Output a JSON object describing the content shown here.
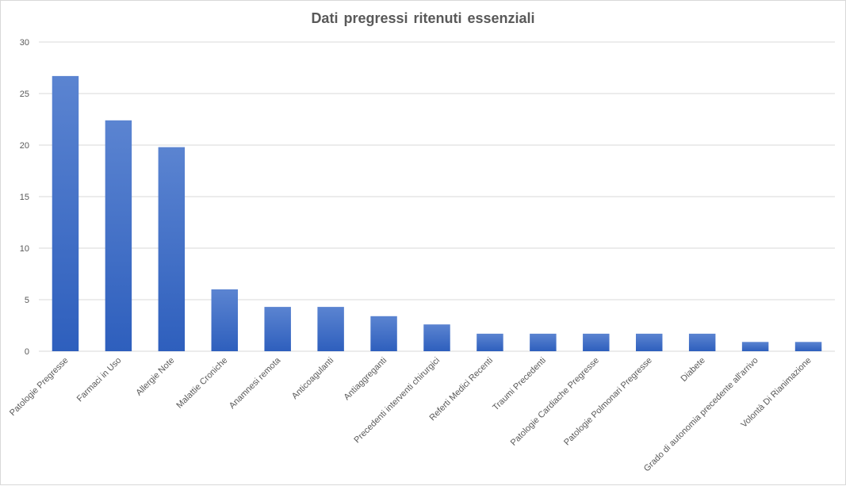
{
  "chart_data": {
    "type": "bar",
    "title": "Dati pregressi ritenuti essenziali",
    "xlabel": "",
    "ylabel": "",
    "ylim": [
      0,
      30
    ],
    "yticks": [
      0,
      5,
      10,
      15,
      20,
      25,
      30
    ],
    "grid": true,
    "legend": "none",
    "categories": [
      "Patologie Pregresse",
      "Farmaci in Uso",
      "Allergie Note",
      "Malattie Croniche",
      "Anamnesi remota",
      "Anticoagulanti",
      "Antiaggreganti",
      "Precedenti interventi chirurgici",
      "Referti Medici Recenti",
      "Traumi Precedenti",
      "Patologie Cardiache Pregresse",
      "Patologie Polmonari Pregresse",
      "Diabete",
      "Grado di  autonomia precedente all'arrivo",
      "Volontà Di Rianimazione"
    ],
    "values": [
      26.7,
      22.4,
      19.8,
      6.0,
      4.3,
      4.3,
      3.4,
      2.6,
      1.7,
      1.7,
      1.7,
      1.7,
      1.7,
      0.9,
      0.9
    ],
    "colors": {
      "bar_top": "#5b84d1",
      "bar_bottom": "#2e5fbd",
      "grid": "#d9d9d9",
      "text": "#595959"
    }
  }
}
